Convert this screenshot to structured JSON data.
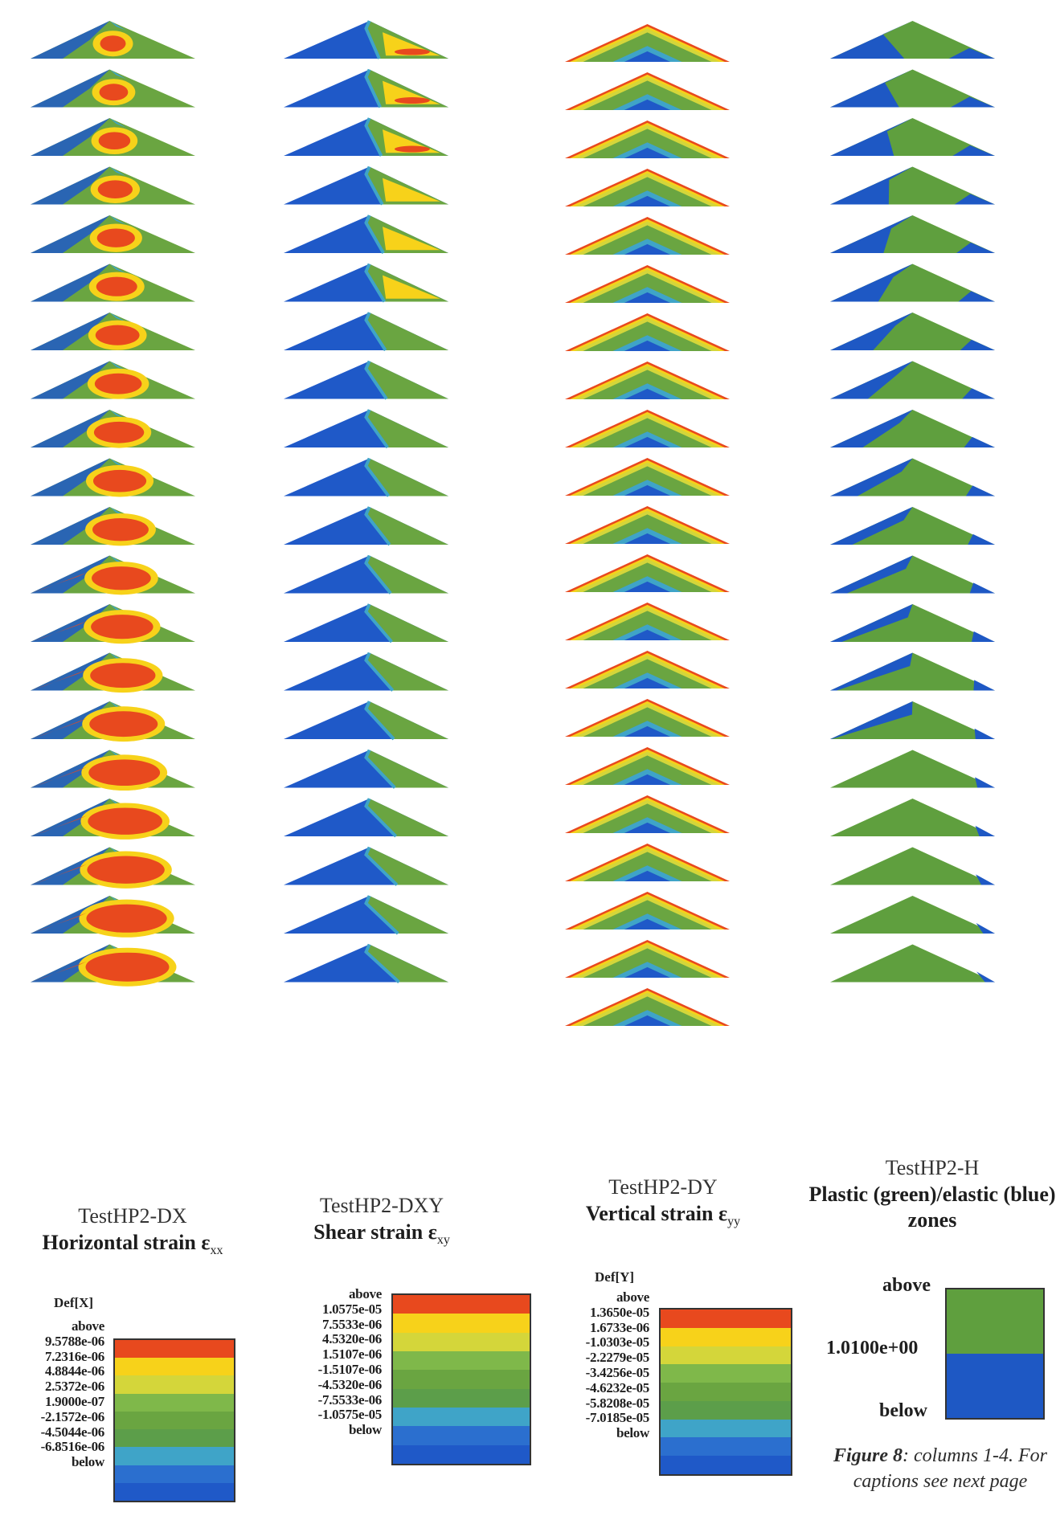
{
  "columns": [
    {
      "id": "TestHP2-DX",
      "title": "Horizontal strain ε",
      "title_sub": "xx",
      "legend_header": "Def[X]",
      "legend_labels": [
        "above",
        "9.5788e-06",
        "7.2316e-06",
        "4.8844e-06",
        "2.5372e-06",
        "1.9000e-07",
        "-2.1572e-06",
        "-4.5044e-06",
        "-6.8516e-06",
        "below"
      ],
      "legend_colors": [
        "#e8491e",
        "#f7d21a",
        "#d4d63a",
        "#7fb84a",
        "#6aa541",
        "#5c9e4a",
        "#3fa4c8",
        "#2b6fcf",
        "#1f59c8"
      ]
    },
    {
      "id": "TestHP2-DXY",
      "title": "Shear strain ε",
      "title_sub": "xy",
      "legend_header": "",
      "legend_labels": [
        "above",
        "1.0575e-05",
        "7.5533e-06",
        "4.5320e-06",
        "1.5107e-06",
        "-1.5107e-06",
        "-4.5320e-06",
        "-7.5533e-06",
        "-1.0575e-05",
        "below"
      ],
      "legend_colors": [
        "#e8491e",
        "#f7d21a",
        "#d4d63a",
        "#7fb84a",
        "#6aa541",
        "#5c9e4a",
        "#3fa4c8",
        "#2b6fcf",
        "#1f59c8"
      ]
    },
    {
      "id": "TestHP2-DY",
      "title": "Vertical strain ε",
      "title_sub": "yy",
      "legend_header": "Def[Y]",
      "legend_labels": [
        "above",
        "1.3650e-05",
        "1.6733e-06",
        "-1.0303e-05",
        "-2.2279e-05",
        "-3.4256e-05",
        "-4.6232e-05",
        "-5.8208e-05",
        "-7.0185e-05",
        "below"
      ],
      "legend_colors": [
        "#e8491e",
        "#f7d21a",
        "#d4d63a",
        "#7fb84a",
        "#6aa541",
        "#5c9e4a",
        "#3fa4c8",
        "#2b6fcf",
        "#1f59c8"
      ]
    },
    {
      "id": "TestHP2-H",
      "title": "Plastic (green)/elastic (blue) zones",
      "title_sub": "",
      "legend_header": "",
      "legend_labels": [
        "above",
        "1.0100e+00",
        "below"
      ],
      "legend_colors": [
        "#5f9f3e",
        "#1e58c4"
      ]
    }
  ],
  "figure_note": {
    "label": "Figure 8",
    "text": ": columns 1-4. For captions see next page"
  },
  "colors": {
    "red": "#e8491e",
    "yellow": "#f7d21a",
    "green": "#6aa541",
    "cyan": "#3fa4c8",
    "blue": "#1f59c8"
  }
}
